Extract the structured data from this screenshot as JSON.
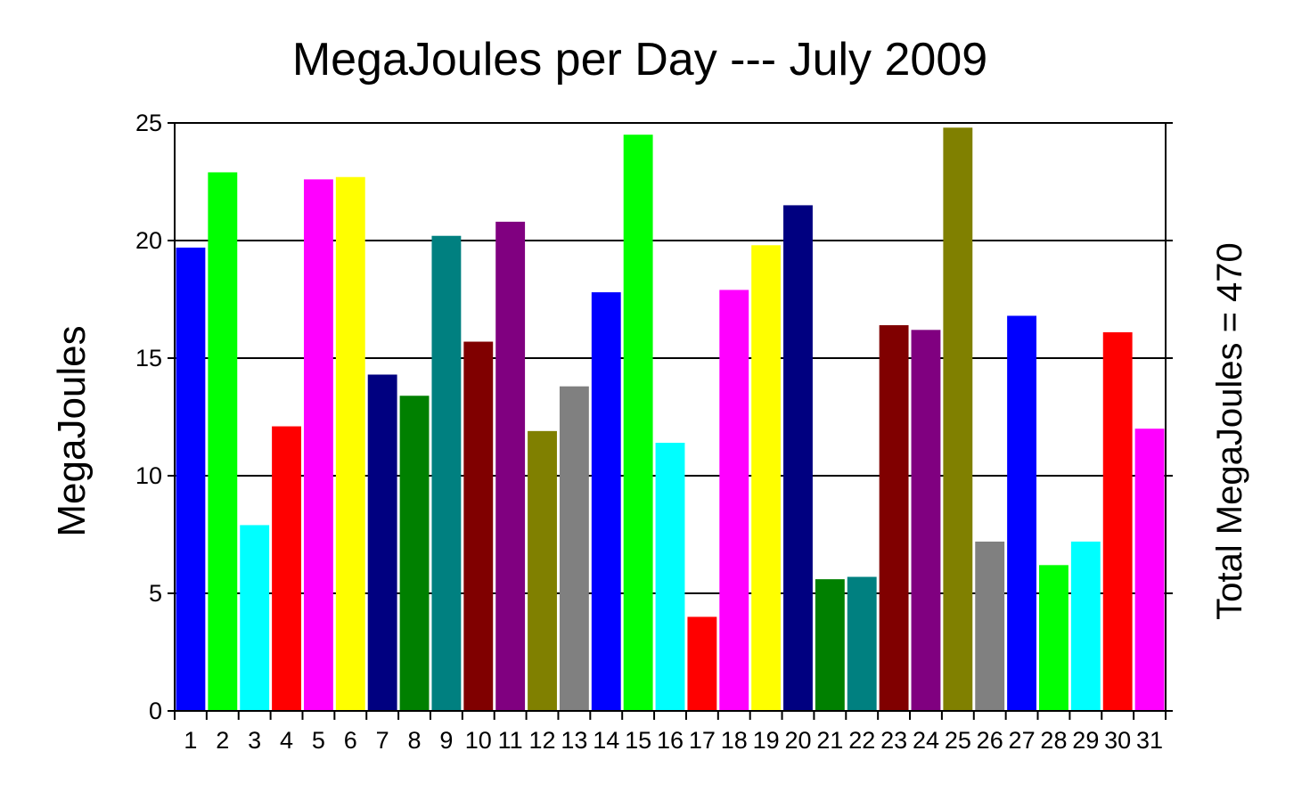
{
  "chart_data": {
    "type": "bar",
    "title": "MegaJoules per Day --- July 2009",
    "ylabel": "MegaJoules",
    "xlabel": "",
    "right_label": "Total MegaJoules = 470",
    "ylim": [
      0,
      25
    ],
    "yticks": [
      "0",
      "5",
      "10",
      "15",
      "20",
      "25"
    ],
    "grid": "horizontal",
    "legend": "none",
    "categories": [
      "1",
      "2",
      "3",
      "4",
      "5",
      "6",
      "7",
      "8",
      "9",
      "10",
      "11",
      "12",
      "13",
      "14",
      "15",
      "16",
      "17",
      "18",
      "19",
      "20",
      "21",
      "22",
      "23",
      "24",
      "25",
      "26",
      "27",
      "28",
      "29",
      "30",
      "31"
    ],
    "values": [
      19.7,
      22.9,
      7.9,
      12.1,
      22.6,
      22.7,
      14.3,
      13.4,
      20.2,
      15.7,
      20.8,
      11.9,
      13.8,
      17.8,
      24.5,
      11.4,
      4.0,
      17.9,
      19.8,
      21.5,
      5.6,
      5.7,
      16.4,
      16.2,
      24.8,
      7.2,
      16.8,
      6.2,
      7.2,
      16.1,
      12.0
    ],
    "colors": [
      "#0000ff",
      "#00ff00",
      "#00ffff",
      "#ff0000",
      "#ff00ff",
      "#ffff00",
      "#000080",
      "#008000",
      "#008080",
      "#800000",
      "#800080",
      "#808000",
      "#808080",
      "#0000ff",
      "#00ff00",
      "#00ffff",
      "#ff0000",
      "#ff00ff",
      "#ffff00",
      "#000080",
      "#008000",
      "#008080",
      "#800000",
      "#800080",
      "#808000",
      "#808080",
      "#0000ff",
      "#00ff00",
      "#00ffff",
      "#ff0000",
      "#ff00ff"
    ]
  }
}
